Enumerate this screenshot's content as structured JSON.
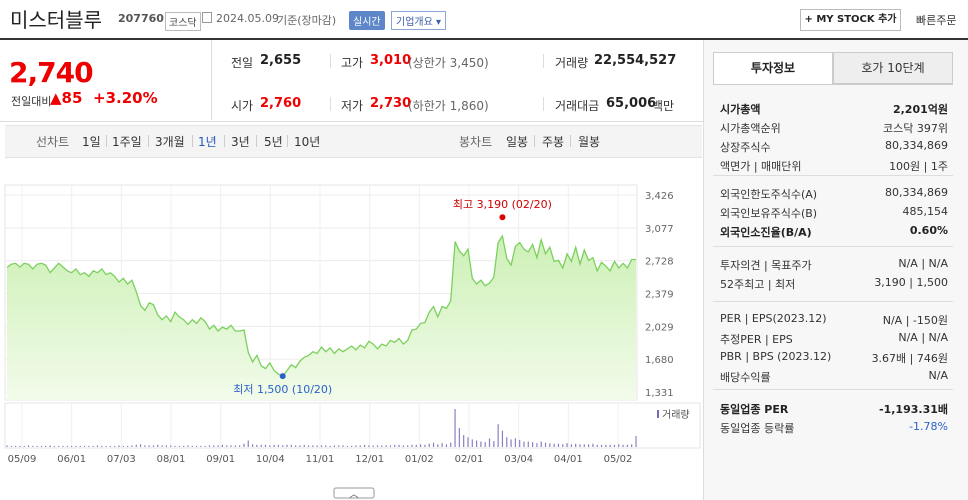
{
  "header": {
    "name": "미스터블루",
    "code": "207760",
    "market": "코스닥",
    "date": "2024.05.09",
    "basis": "기준(장마감)",
    "realtime": "실시간",
    "company_info": "기업개요 ▾",
    "mystock_btn": "+ MY STOCK 추가",
    "quick_order": "빠른주문"
  },
  "price": {
    "current": "2,740",
    "vs_label": "전일대비",
    "change": "▲85",
    "rate": "+3.20%"
  },
  "summary": {
    "prev_label": "전일",
    "prev": "2,655",
    "high_label": "고가",
    "high": "3,010",
    "upper": "(상한가 3,450)",
    "volume_label": "거래량",
    "volume": "22,554,527",
    "open_label": "시가",
    "open": "2,760",
    "low_label": "저가",
    "low": "2,730",
    "lower": "(하한가 1,860)",
    "amount_label": "거래대금",
    "amount": "65,006",
    "amount_unit": "백만"
  },
  "chart_tabs": {
    "line_label": "선차트",
    "line_items": [
      "1일",
      "1주일",
      "3개월",
      "1년",
      "3년",
      "5년",
      "10년"
    ],
    "selected": "1년",
    "candle_label": "봉차트",
    "candle_items": [
      "일봉",
      "주봉",
      "월봉"
    ]
  },
  "chart_data": {
    "type": "area",
    "x_ticks": [
      "05/09",
      "06/01",
      "07/03",
      "08/01",
      "09/01",
      "10/04",
      "11/01",
      "12/01",
      "01/02",
      "02/01",
      "03/04",
      "04/01",
      "05/02"
    ],
    "y_ticks": [
      "3,426",
      "3,077",
      "2,728",
      "2,379",
      "2,029",
      "1,680",
      "1,331"
    ],
    "ylim": [
      1331,
      3426
    ],
    "series": [
      {
        "values": [
          2655,
          2690,
          2700,
          2660,
          2700,
          2690,
          2640,
          2690,
          2700,
          2680,
          2600,
          2650,
          2700,
          2660,
          2620,
          2600,
          2640,
          2580,
          2600,
          2560,
          2620,
          2600,
          2640,
          2580,
          2600,
          2560,
          2500,
          2540,
          2480,
          2520,
          2400,
          2250,
          2200,
          2280,
          2260,
          2150,
          2100,
          2140,
          2080,
          2180,
          2130,
          2100,
          2050,
          2100,
          2060,
          2120,
          2080,
          2000,
          2040,
          1980,
          2020,
          2000,
          2040,
          1980,
          1980,
          1990,
          1750,
          1650,
          1720,
          1610,
          1580,
          1640,
          1560,
          1520,
          1500,
          1560,
          1620,
          1590,
          1660,
          1700,
          1720,
          1760,
          1740,
          1810,
          1760,
          1800,
          1740,
          1790,
          1760,
          1790,
          1820,
          1780,
          1830,
          1800,
          1870,
          1840,
          1790,
          1840,
          1820,
          1880,
          1860,
          1900,
          1840,
          1880,
          1990,
          2000,
          2060,
          2070,
          2180,
          2240,
          2130,
          2240,
          2220,
          2300,
          2930,
          2830,
          2780,
          2850,
          2540,
          2480,
          2520,
          2460,
          2490,
          2550,
          2920,
          2990,
          2750,
          2680,
          2880,
          2920,
          2850,
          2820,
          2900,
          2760,
          2950,
          2800,
          2870,
          2720,
          2730,
          2650,
          2800,
          2720,
          2870,
          2690,
          2840,
          2730,
          2760,
          2620,
          2710,
          2670,
          2620,
          2720,
          2650,
          2700,
          2650,
          2740,
          2740
        ],
        "volume": [
          3,
          2,
          2,
          2,
          2,
          3,
          2,
          2,
          2,
          2,
          3,
          2,
          2,
          2,
          2,
          2,
          2,
          2,
          2,
          2,
          2,
          3,
          2,
          2,
          2,
          2,
          3,
          2,
          2,
          3,
          4,
          5,
          3,
          3,
          3,
          4,
          3,
          3,
          3,
          2,
          2,
          2,
          3,
          2,
          2,
          2,
          2,
          3,
          3,
          3,
          4,
          3,
          3,
          3,
          3,
          6,
          12,
          5,
          4,
          4,
          4,
          3,
          4,
          4,
          3,
          4,
          4,
          3,
          3,
          4,
          3,
          3,
          3,
          3,
          3,
          2,
          3,
          3,
          3,
          2,
          2,
          3,
          3,
          4,
          3,
          3,
          3,
          3,
          3,
          3,
          4,
          4,
          3,
          3,
          4,
          4,
          5,
          4,
          6,
          8,
          5,
          7,
          5,
          8,
          70,
          35,
          22,
          18,
          14,
          12,
          10,
          9,
          16,
          11,
          42,
          30,
          18,
          14,
          16,
          13,
          10,
          10,
          9,
          7,
          10,
          8,
          7,
          6,
          6,
          5,
          7,
          5,
          6,
          5,
          5,
          5,
          6,
          4,
          4,
          4,
          4,
          4,
          5,
          4,
          4,
          5,
          20
        ]
      }
    ],
    "high_label": "최고 3,190 (02/20)",
    "high_value": 3190,
    "low_label": "최저 1,500 (10/20)",
    "low_value": 1500,
    "volume_legend": "거래량",
    "line_color": "#7bd05e",
    "fill_color": "#cdf0b6"
  },
  "invest": {
    "tab1": "투자정보",
    "tab2": "호가 10단계",
    "rows1": [
      {
        "label": "시가총액",
        "value": "2,201억원",
        "bold": true
      },
      {
        "label": "시가총액순위",
        "value": "코스닥 397위"
      },
      {
        "label": "상장주식수",
        "value": "80,334,869"
      },
      {
        "label": "액면가 | 매매단위",
        "value": "100원 | 1주"
      }
    ],
    "rows2": [
      {
        "label": "외국인한도주식수(A)",
        "value": "80,334,869"
      },
      {
        "label": "외국인보유주식수(B)",
        "value": "485,154"
      },
      {
        "label": "외국인소진율(B/A)",
        "value": "0.60%",
        "bold": true
      }
    ],
    "rows3": [
      {
        "label": "투자의견 | 목표주가",
        "value": "N/A | N/A"
      },
      {
        "label": "52주최고 | 최저",
        "value": "3,190 | 1,500"
      }
    ],
    "rows4": [
      {
        "label": "PER | EPS(2023.12)",
        "value": "N/A | -150원"
      },
      {
        "label": "추정PER | EPS",
        "value": "N/A | N/A"
      },
      {
        "label": "PBR | BPS (2023.12)",
        "value": "3.67배 | 746원"
      },
      {
        "label": "배당수익률",
        "value": "N/A"
      }
    ],
    "rows5": [
      {
        "label": "동일업종 PER",
        "value": "-1,193.31배",
        "bold": true
      },
      {
        "label": "동일업종 등락률",
        "value": "-1.78%",
        "blue": true
      }
    ]
  },
  "colors": {
    "up": "#e00000",
    "accent_blue": "#2556b8"
  }
}
